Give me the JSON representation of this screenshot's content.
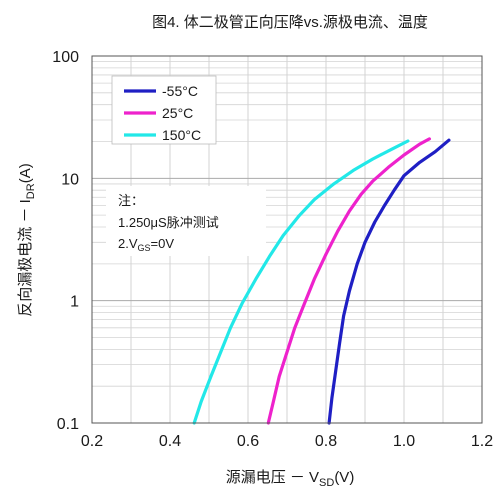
{
  "chart_data": {
    "type": "line",
    "title": "图4. 体二极管正向压降vs.源极电流、温度",
    "xlabel": {
      "main": "源漏电压 － V",
      "sub": "SD",
      "tail": "(V)"
    },
    "ylabel": {
      "main": "反向漏极电流 － I",
      "sub": "DR",
      "tail": "(A)"
    },
    "x_scale": "linear",
    "y_scale": "log",
    "xlim": [
      0.2,
      1.2
    ],
    "ylim": [
      0.1,
      100
    ],
    "x_ticks": [
      "0.2",
      "0.4",
      "0.6",
      "0.8",
      "1.0",
      "1.2"
    ],
    "y_ticks": [
      "0.1",
      "1",
      "10",
      "100"
    ],
    "grid": true,
    "legend_position": "top-left",
    "series": [
      {
        "name": "-55°C",
        "color": "#1f1fc4",
        "x": [
          0.808,
          0.815,
          0.825,
          0.835,
          0.845,
          0.86,
          0.88,
          0.9,
          0.925,
          0.95,
          0.975,
          1.0,
          1.04,
          1.08,
          1.115
        ],
        "y": [
          0.1,
          0.16,
          0.27,
          0.45,
          0.75,
          1.2,
          2.0,
          3.0,
          4.4,
          6.0,
          8.0,
          10.5,
          13.5,
          16.5,
          20.5
        ]
      },
      {
        "name": "25°C",
        "color": "#ee22cc",
        "x": [
          0.652,
          0.665,
          0.68,
          0.7,
          0.72,
          0.745,
          0.77,
          0.8,
          0.83,
          0.86,
          0.89,
          0.92,
          0.96,
          1.0,
          1.04,
          1.065
        ],
        "y": [
          0.1,
          0.15,
          0.24,
          0.38,
          0.6,
          0.95,
          1.5,
          2.4,
          3.7,
          5.4,
          7.4,
          9.5,
          12.3,
          15.5,
          19.0,
          21.0
        ]
      },
      {
        "name": "150°C",
        "color": "#22e8e8",
        "x": [
          0.462,
          0.48,
          0.505,
          0.53,
          0.555,
          0.585,
          0.62,
          0.655,
          0.69,
          0.73,
          0.77,
          0.82,
          0.87,
          0.92,
          0.97,
          1.01
        ],
        "y": [
          0.1,
          0.15,
          0.24,
          0.38,
          0.6,
          0.95,
          1.5,
          2.3,
          3.4,
          4.9,
          6.7,
          9.0,
          11.6,
          14.4,
          17.4,
          20.2
        ]
      }
    ],
    "note": {
      "title": "注：",
      "line1": "1.250μS脉冲测试",
      "line2_main": "2.V",
      "line2_sub": "GS",
      "line2_tail": "=0V"
    }
  }
}
